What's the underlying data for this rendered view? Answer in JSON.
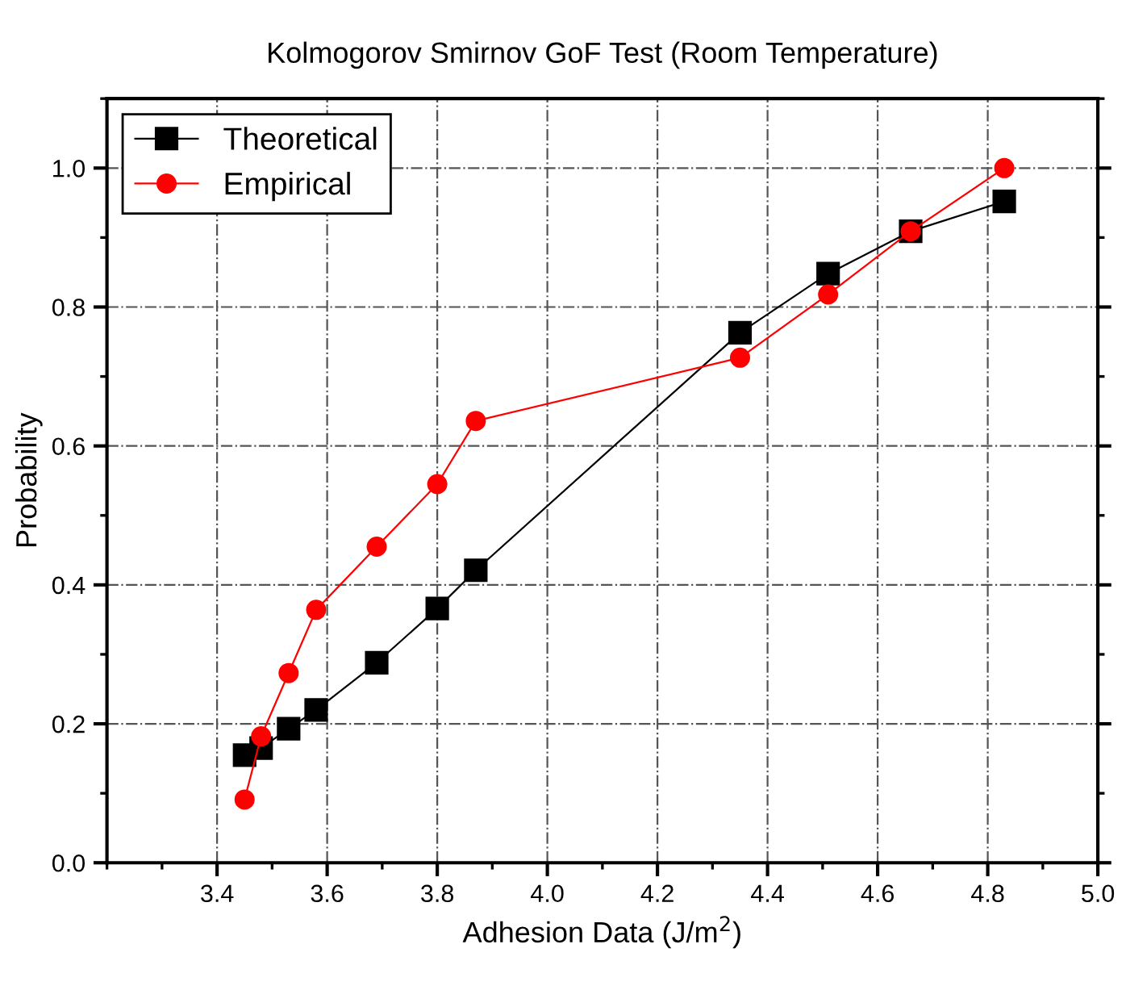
{
  "chart_data": {
    "type": "line",
    "title": "Kolmogorov Smirnov GoF Test (Room Temperature)",
    "xlabel": "Adhesion Data (J/m$^{2}$)",
    "ylabel": "Probability",
    "x": [
      3.45,
      3.48,
      3.53,
      3.58,
      3.69,
      3.8,
      3.87,
      4.35,
      4.51,
      4.66,
      4.83
    ],
    "series": [
      {
        "name": "Theoretical",
        "color": "#000000",
        "marker": "square",
        "values": [
          0.155,
          0.165,
          0.193,
          0.22,
          0.288,
          0.366,
          0.421,
          0.763,
          0.848,
          0.909,
          0.952
        ]
      },
      {
        "name": "Empirical",
        "color": "#ff0000",
        "marker": "circle",
        "values": [
          0.091,
          0.182,
          0.273,
          0.364,
          0.455,
          0.545,
          0.636,
          0.727,
          0.818,
          0.909,
          1.0
        ]
      }
    ],
    "xlim": [
      3.2,
      5.0
    ],
    "xticks": [
      3.4,
      3.6,
      3.8,
      {
        "value": 4.0,
        "label": "4.0"
      },
      4.2,
      4.4,
      4.6,
      4.8,
      {
        "value": 5.0,
        "label": "5.0"
      }
    ],
    "ylim": [
      0.0,
      1.1
    ],
    "yticks": [
      {
        "value": 0.0,
        "label": "0.0"
      },
      0.2,
      0.4,
      0.6,
      0.8,
      {
        "value": 1.0,
        "label": "1.0"
      }
    ],
    "grid": true,
    "legend": "top left",
    "line_style": "solid"
  }
}
